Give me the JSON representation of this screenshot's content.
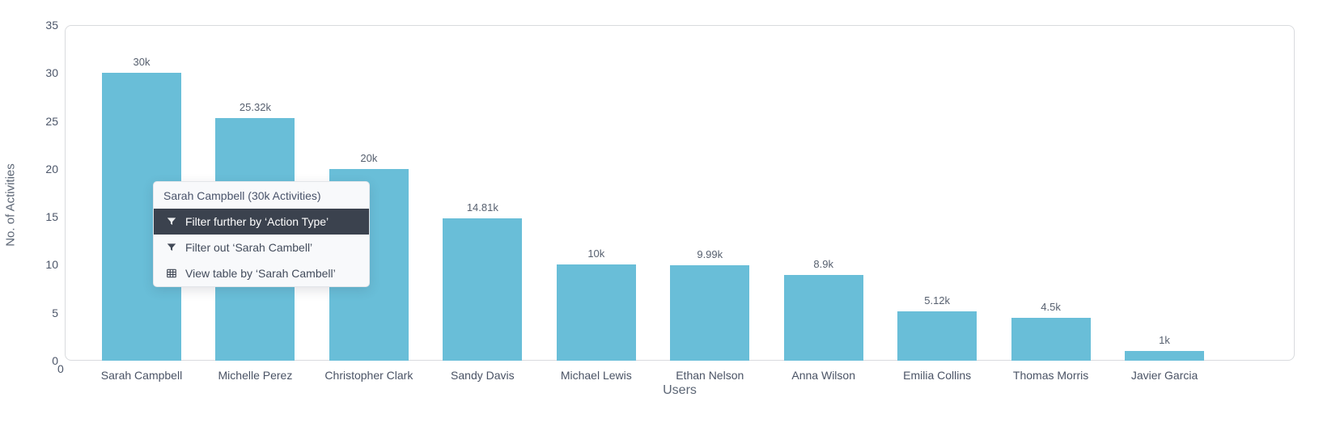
{
  "chart_data": {
    "type": "bar",
    "title": "",
    "xlabel": "Users",
    "ylabel": "No. of Activities",
    "categories": [
      "Sarah Campbell",
      "Michelle Perez",
      "Christopher Clark",
      "Sandy Davis",
      "Michael Lewis",
      "Ethan Nelson",
      "Anna Wilson",
      "Emilia Collins",
      "Thomas Morris",
      "Javier Garcia"
    ],
    "values": [
      30,
      25.32,
      20,
      14.81,
      10,
      9.99,
      8.9,
      5.12,
      4.5,
      1
    ],
    "value_unit": "k",
    "bar_labels": [
      "30k",
      "25.32k",
      "20k",
      "14.81k",
      "10k",
      "9.99k",
      "8.9k",
      "5.12k",
      "4.5k",
      "1k"
    ],
    "yticks": [
      0,
      5,
      10,
      15,
      20,
      25,
      30,
      35
    ],
    "ylim": [
      0,
      35
    ],
    "origin_label": "0",
    "bar_color": "#69bed8",
    "grid": false,
    "legend": "none"
  },
  "context_menu": {
    "title": "Sarah Campbell (30k Activities)",
    "items": [
      {
        "label": "Filter further by ‘Action Type’",
        "icon": "filter-icon",
        "active": true
      },
      {
        "label": "Filter out ‘Sarah Cambell’",
        "icon": "filter-icon",
        "active": false
      },
      {
        "label": "View table by  ‘Sarah Cambell’",
        "icon": "table-icon",
        "active": false
      }
    ]
  }
}
